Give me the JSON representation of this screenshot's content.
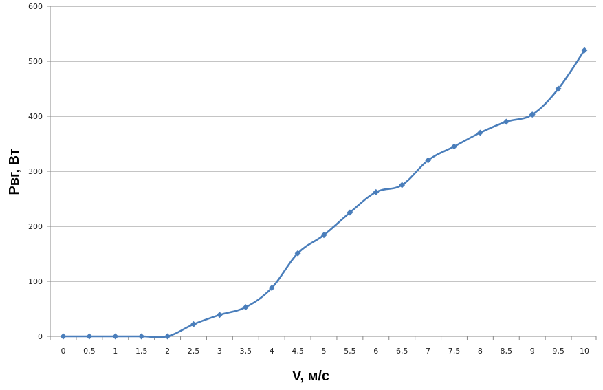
{
  "chart_data": {
    "type": "line",
    "title": "",
    "xlabel": "V, м/с",
    "ylabel": "Pвг, Вт",
    "x": [
      "0",
      "0,5",
      "1",
      "1,5",
      "2",
      "2,5",
      "3",
      "3,5",
      "4",
      "4,5",
      "5",
      "5,5",
      "6",
      "6,5",
      "7",
      "7,5",
      "8",
      "8,5",
      "9",
      "9,5",
      "10"
    ],
    "series": [
      {
        "values": [
          0,
          0,
          0,
          0,
          0,
          22,
          39,
          53,
          88,
          151,
          184,
          225,
          262,
          275,
          320,
          345,
          370,
          390,
          403,
          450,
          520
        ]
      }
    ],
    "ylim": [
      0,
      600
    ],
    "yticks": [
      "0",
      "100",
      "200",
      "300",
      "400",
      "500",
      "600"
    ],
    "grid": "horizontal",
    "legend": "none",
    "colors": {
      "series": "#4a7ebb",
      "marker": "#4a7ebb",
      "grid": "#888888",
      "axis": "#888888"
    }
  }
}
